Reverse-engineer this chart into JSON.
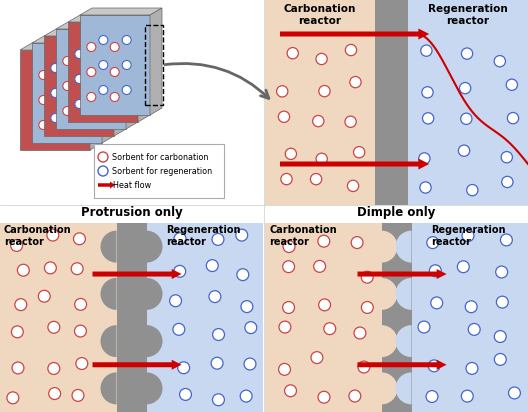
{
  "bg_color": "#ffffff",
  "carbonation_color": "#f0d8c0",
  "regeneration_color": "#c8d8f0",
  "wall_color": "#909090",
  "wall_dark": "#787878",
  "arrow_color": "#cc0000",
  "circle_carb_color": "#cc4444",
  "circle_regen_color": "#4466cc",
  "protrusion_title": "Protrusion only",
  "dimple_title": "Dimple only",
  "carb_label": "Carbonation\nreactor",
  "regen_label": "Regeneration\nreactor",
  "legend_carb": "Sorbent for carbonation",
  "legend_regen": "Sorbent for regeneration",
  "legend_heat": "Heat flow",
  "plate_red": "#c05050",
  "plate_blue": "#a0b8d8",
  "plate_top": "#c8c8c8",
  "plate_side": "#b0b0b0"
}
